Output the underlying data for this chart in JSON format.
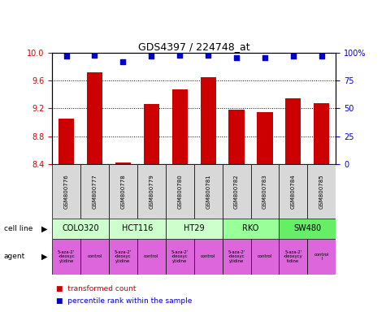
{
  "title": "GDS4397 / 224748_at",
  "samples": [
    "GSM800776",
    "GSM800777",
    "GSM800778",
    "GSM800779",
    "GSM800780",
    "GSM800781",
    "GSM800782",
    "GSM800783",
    "GSM800784",
    "GSM800785"
  ],
  "bar_values": [
    9.05,
    9.72,
    8.42,
    9.26,
    9.48,
    9.65,
    9.18,
    9.15,
    9.35,
    9.27
  ],
  "dot_values": [
    97,
    98,
    92,
    97,
    98,
    98,
    96,
    96,
    97,
    97
  ],
  "ylim_left": [
    8.4,
    10.0
  ],
  "ylim_right": [
    0,
    100
  ],
  "yticks_left": [
    8.4,
    8.8,
    9.2,
    9.6,
    10.0
  ],
  "yticks_right": [
    0,
    25,
    50,
    75,
    100
  ],
  "bar_color": "#cc0000",
  "dot_color": "#0000cc",
  "cell_lines": [
    {
      "label": "COLO320",
      "span": [
        0,
        2
      ],
      "color": "#ccffcc"
    },
    {
      "label": "HCT116",
      "span": [
        2,
        4
      ],
      "color": "#ccffcc"
    },
    {
      "label": "HT29",
      "span": [
        4,
        6
      ],
      "color": "#ccffcc"
    },
    {
      "label": "RKO",
      "span": [
        6,
        8
      ],
      "color": "#99ff99"
    },
    {
      "label": "SW480",
      "span": [
        8,
        10
      ],
      "color": "#66ee66"
    }
  ],
  "agent_labels": [
    "5-aza-2'\n-deoxyc\nytidine",
    "control",
    "5-aza-2'\n-deoxyc\nytidine",
    "control",
    "5-aza-2'\n-deoxyc\nytidine",
    "control",
    "5-aza-2'\n-deoxyc\nytidine",
    "control",
    "5-aza-2'\n-deoxycy\ntidine",
    "control\nl"
  ],
  "legend_bar_label": "transformed count",
  "legend_dot_label": "percentile rank within the sample",
  "xlabel_cell_line": "cell line",
  "xlabel_agent": "agent",
  "bg_color": "#ffffff",
  "sample_area_color": "#d8d8d8",
  "tick_color_left": "#cc0000",
  "tick_color_right": "#0000cc",
  "agent_color": "#dd66dd"
}
